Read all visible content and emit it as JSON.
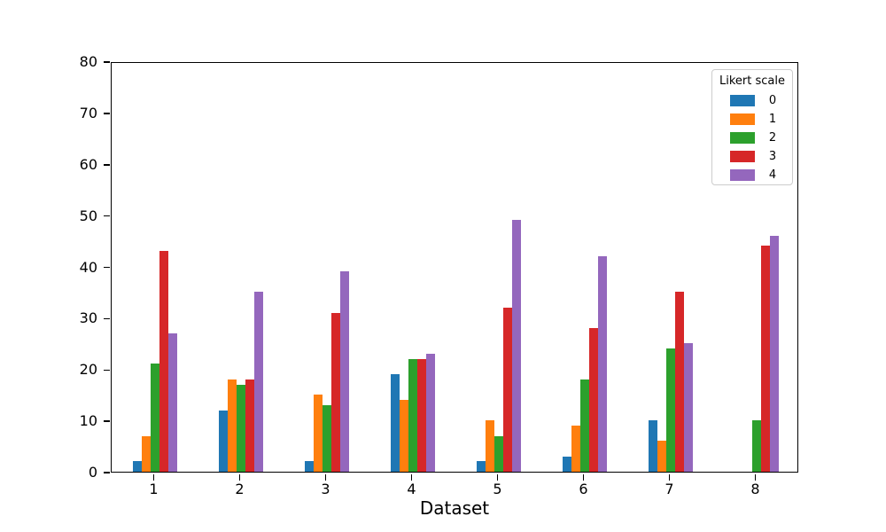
{
  "figure": {
    "background": "#ffffff"
  },
  "chart_data": {
    "type": "bar",
    "title": "",
    "xlabel": "Dataset",
    "ylabel": "",
    "categories": [
      "1",
      "2",
      "3",
      "4",
      "5",
      "6",
      "7",
      "8"
    ],
    "series": [
      {
        "name": "0",
        "color": "#1f77b4",
        "values": [
          2,
          12,
          2,
          19,
          2,
          3,
          10,
          0
        ]
      },
      {
        "name": "1",
        "color": "#ff7f0e",
        "values": [
          7,
          18,
          15,
          14,
          10,
          9,
          6,
          0
        ]
      },
      {
        "name": "2",
        "color": "#2ca02c",
        "values": [
          21,
          17,
          13,
          22,
          7,
          18,
          24,
          10
        ]
      },
      {
        "name": "3",
        "color": "#d62728",
        "values": [
          43,
          18,
          31,
          22,
          32,
          28,
          35,
          44
        ]
      },
      {
        "name": "4",
        "color": "#9467bd",
        "values": [
          27,
          35,
          39,
          23,
          49,
          42,
          25,
          46
        ]
      }
    ],
    "ylim": [
      0,
      80
    ],
    "yticks": [
      0,
      10,
      20,
      30,
      40,
      50,
      60,
      70,
      80
    ],
    "grid": false,
    "legend": {
      "title": "Likert scale",
      "position": "upper right",
      "entries": [
        "0",
        "1",
        "2",
        "3",
        "4"
      ]
    }
  }
}
